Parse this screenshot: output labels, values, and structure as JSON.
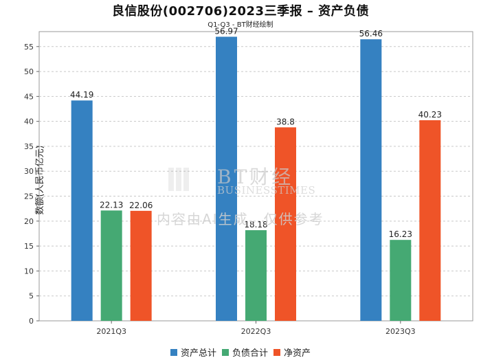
{
  "chart_data": {
    "type": "bar",
    "title": "良信股份(002706)2023三季报 – 资产负债",
    "subtitle": "Q1-Q3 - BT财经绘制",
    "xlabel": "",
    "ylabel": "数额(人民币亿元)",
    "ylim": [
      0,
      58
    ],
    "yticks": [
      0,
      5,
      10,
      15,
      20,
      25,
      30,
      35,
      40,
      45,
      50,
      55
    ],
    "grid": true,
    "legend_position": "bottom",
    "categories": [
      "2021Q3",
      "2022Q3",
      "2023Q3"
    ],
    "series": [
      {
        "name": "资产总计",
        "color": "#3581c1",
        "values": [
          44.19,
          56.97,
          56.46
        ],
        "labels": [
          "44.19",
          "56.97",
          "56.46"
        ]
      },
      {
        "name": "负债合计",
        "color": "#45a973",
        "values": [
          22.13,
          18.18,
          16.23
        ],
        "labels": [
          "22.13",
          "18.18",
          "16.23"
        ]
      },
      {
        "name": "净资产",
        "color": "#ef5428",
        "values": [
          22.06,
          38.8,
          40.23
        ],
        "labels": [
          "22.06",
          "38.8",
          "40.23"
        ]
      }
    ]
  },
  "watermark": {
    "brand": "BT财经",
    "brand_en": "BUSINESSTIMES",
    "notice": "内容由AI生成，仅供参考"
  }
}
